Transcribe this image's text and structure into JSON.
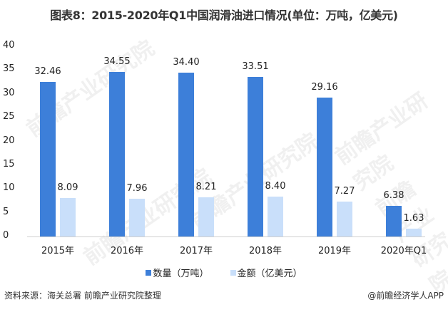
{
  "title": "图表8：2015-2020年Q1中国润滑油进口情况(单位：万吨，亿美元)",
  "legend": {
    "series1": "数量（万吨）",
    "series2": "金额（亿美元）"
  },
  "footer": {
    "source": "资料来源：海关总署 前瞻产业研究院整理",
    "credit": "@前瞻经济学人APP"
  },
  "watermark": "前瞻产业研究院",
  "colors": {
    "quantity": "#3d7fd9",
    "amount": "#c9dffa",
    "axis": "#d0d0d0"
  },
  "yticks": [
    "40",
    "35",
    "30",
    "25",
    "20",
    "15",
    "10",
    "5",
    "0"
  ],
  "chart_data": {
    "type": "bar",
    "title": "图表8：2015-2020年Q1中国润滑油进口情况(单位：万吨，亿美元)",
    "categories": [
      "2015年",
      "2016年",
      "2017年",
      "2018年",
      "2019年",
      "2020年Q1"
    ],
    "series": [
      {
        "name": "数量（万吨）",
        "values": [
          32.46,
          34.55,
          34.4,
          33.51,
          29.16,
          6.38
        ]
      },
      {
        "name": "金额（亿美元）",
        "values": [
          8.09,
          7.96,
          8.21,
          8.4,
          7.27,
          1.63
        ]
      }
    ],
    "value_labels": {
      "quantity": [
        "32.46",
        "34.55",
        "34.40",
        "33.51",
        "29.16",
        "6.38"
      ],
      "amount": [
        "8.09",
        "7.96",
        "8.21",
        "8.40",
        "7.27",
        "1.63"
      ]
    },
    "xlabel": "",
    "ylabel": "",
    "ylim": [
      0,
      40
    ],
    "yticks": [
      0,
      5,
      10,
      15,
      20,
      25,
      30,
      35,
      40
    ],
    "grid": false,
    "legend_position": "bottom"
  }
}
